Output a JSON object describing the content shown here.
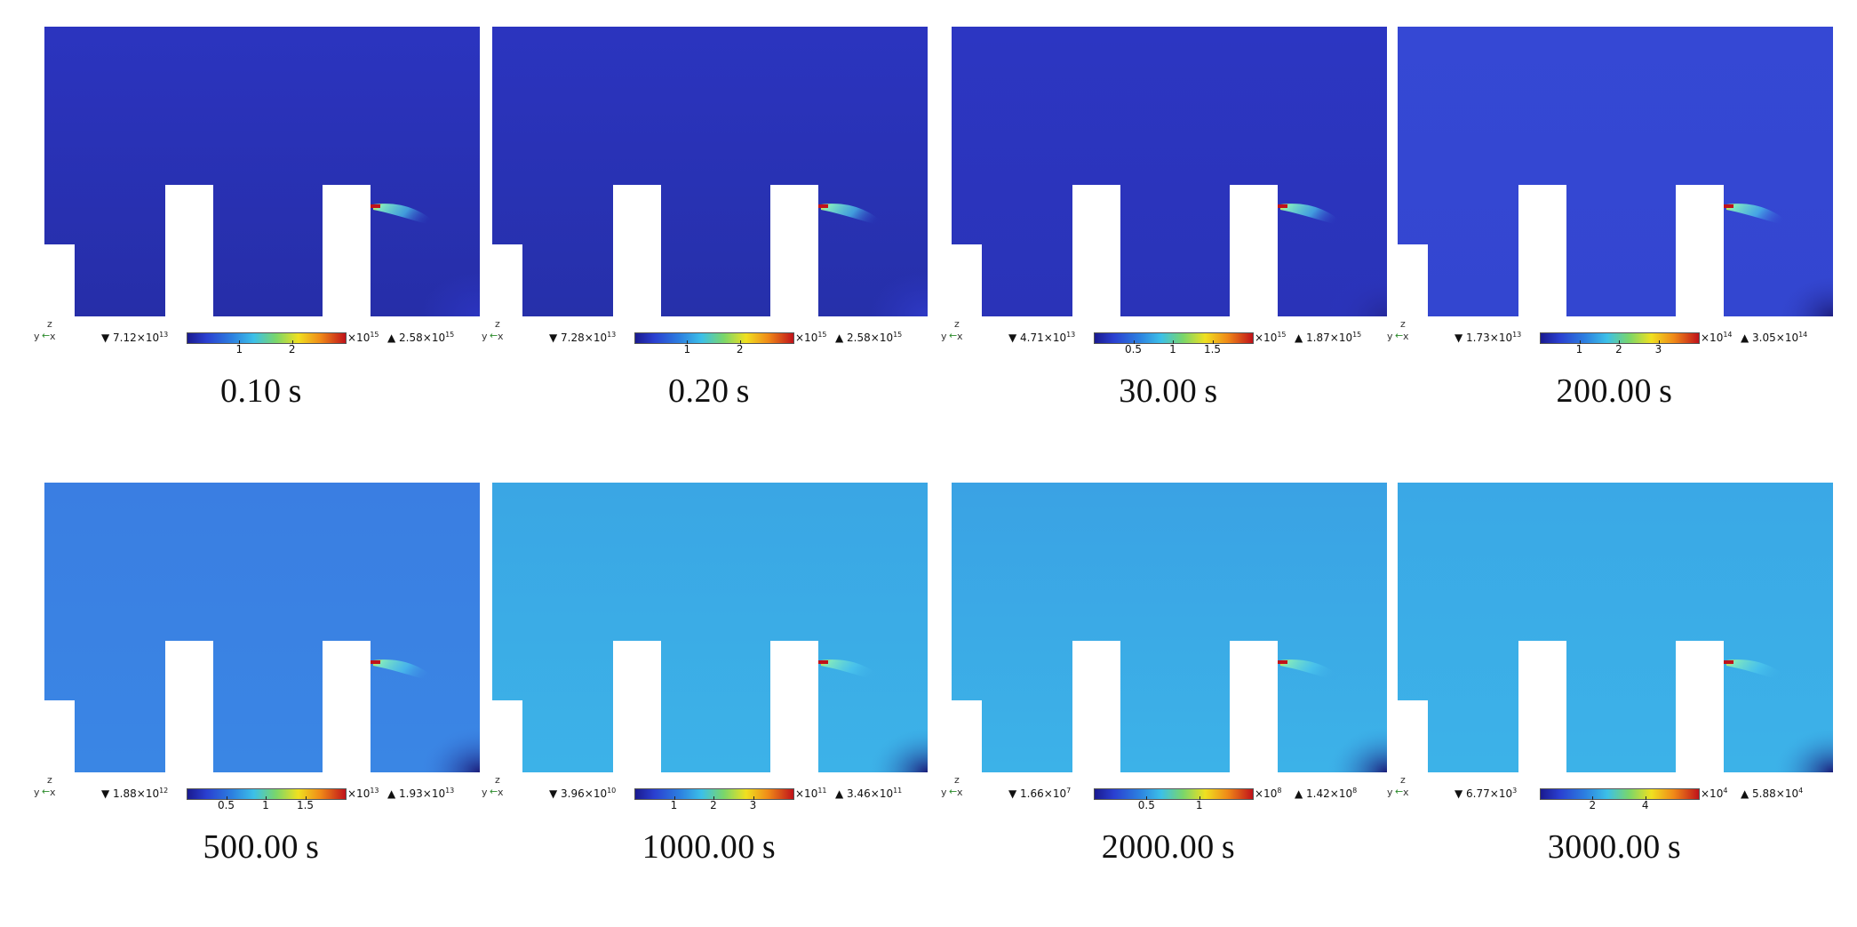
{
  "figure": {
    "panels": [
      {
        "time_label": "0.10 s",
        "min": "7.12×10",
        "min_exp": "13",
        "max": "2.58×10",
        "max_exp": "15",
        "scale": "×10",
        "scale_exp": "15",
        "ticks": [
          "1",
          "2"
        ],
        "bg": "#2b34bf",
        "mid": "#262ea8",
        "corner": "#2b34bf"
      },
      {
        "time_label": "0.20 s",
        "min": "7.28×10",
        "min_exp": "13",
        "max": "2.58×10",
        "max_exp": "15",
        "scale": "×10",
        "scale_exp": "15",
        "ticks": [
          "1",
          "2"
        ],
        "bg": "#2b34bf",
        "mid": "#2630aa",
        "corner": "#2f3ac6"
      },
      {
        "time_label": "30.00 s",
        "min": "4.71×10",
        "min_exp": "13",
        "max": "1.87×10",
        "max_exp": "15",
        "scale": "×10",
        "scale_exp": "15",
        "ticks": [
          "0.5",
          "1",
          "1.5"
        ],
        "bg": "#2c36c2",
        "mid": "#2a33b8",
        "corner": "#26299a"
      },
      {
        "time_label": "200.00 s",
        "min": "1.73×10",
        "min_exp": "13",
        "max": "3.05×10",
        "max_exp": "14",
        "scale": "×10",
        "scale_exp": "14",
        "ticks": [
          "1",
          "2",
          "3"
        ],
        "bg": "#3548d4",
        "mid": "#3346d0",
        "corner": "#1e1f80"
      },
      {
        "time_label": "500.00 s",
        "min": "1.88×10",
        "min_exp": "12",
        "max": "1.93×10",
        "max_exp": "13",
        "scale": "×10",
        "scale_exp": "13",
        "ticks": [
          "0.5",
          "1",
          "1.5"
        ],
        "bg": "#3a7ee2",
        "mid": "#3a86e4",
        "corner": "#1c1e7a"
      },
      {
        "time_label": "1000.00 s",
        "min": "3.96×10",
        "min_exp": "10",
        "max": "3.46×10",
        "max_exp": "11",
        "scale": "×10",
        "scale_exp": "11",
        "ticks": [
          "1",
          "2",
          "3"
        ],
        "bg": "#3aa6e4",
        "mid": "#3cb2e8",
        "corner": "#1c1e7a"
      },
      {
        "time_label": "2000.00 s",
        "min": "1.66×10",
        "min_exp": "7",
        "max": "1.42×10",
        "max_exp": "8",
        "scale": "×10",
        "scale_exp": "8",
        "ticks": [
          "0.5",
          "1"
        ],
        "bg": "#3aa2e4",
        "mid": "#3cb2e8",
        "corner": "#1c1e7a"
      },
      {
        "time_label": "3000.00 s",
        "min": "6.77×10",
        "min_exp": "3",
        "max": "5.88×10",
        "max_exp": "4",
        "scale": "×10",
        "scale_exp": "4",
        "ticks": [
          "2",
          "4"
        ],
        "bg": "#3aa8e6",
        "mid": "#3cb2e8",
        "corner": "#1c1e7a"
      }
    ],
    "axis_labels": {
      "z": "z",
      "y": "y",
      "x": "x"
    },
    "min_marker": "▼",
    "max_marker": "▲"
  }
}
